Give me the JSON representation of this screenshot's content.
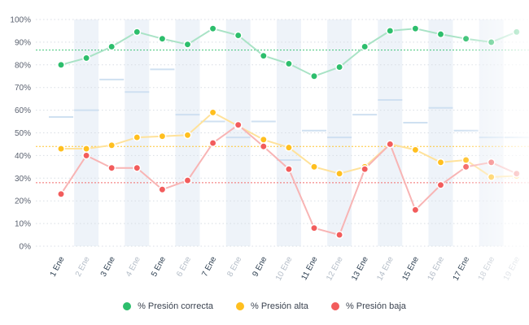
{
  "chart_data": {
    "type": "line",
    "categories": [
      "1 Ene",
      "2 Ene",
      "3 Ene",
      "4 Ene",
      "5 Ene",
      "6 Ene",
      "7 Ene",
      "8 Ene",
      "9 Ene",
      "10 Ene",
      "11 Ene",
      "12 Ene",
      "13 Ene",
      "14 Ene",
      "15 Ene",
      "16 Ene",
      "17 Ene",
      "18 Ene",
      "19 Ene"
    ],
    "category_emphasis": [
      "strong",
      "muted",
      "strong",
      "muted",
      "strong",
      "muted",
      "strong",
      "muted",
      "strong",
      "muted",
      "strong",
      "muted",
      "strong",
      "muted",
      "strong",
      "muted",
      "strong",
      "muted",
      "muted"
    ],
    "yticks": [
      "0%",
      "10%",
      "20%",
      "30%",
      "40%",
      "50%",
      "60%",
      "70%",
      "80%",
      "90%",
      "100%"
    ],
    "ylim": [
      0,
      100
    ],
    "series": [
      {
        "name": "% Presión correcta",
        "color": "#2dbe6c",
        "line_color": "#a9e3c6",
        "values": [
          80,
          83,
          88,
          94.5,
          91.5,
          89,
          96,
          93,
          84,
          80.5,
          75,
          79,
          88,
          95,
          96,
          93.5,
          91.5,
          90,
          94.5
        ]
      },
      {
        "name": "% Presión alta",
        "color": "#ffbf1f",
        "line_color": "#ffe29a",
        "values": [
          43,
          43,
          44.5,
          48,
          48.5,
          49,
          59,
          53,
          47,
          43.5,
          35,
          32,
          35,
          45,
          42.5,
          37,
          38,
          30.5,
          31
        ]
      },
      {
        "name": "% Presión baja",
        "color": "#f25c5c",
        "line_color": "#f8b4b4",
        "values": [
          23,
          40,
          34.5,
          34.5,
          25,
          29,
          45.5,
          53.5,
          44,
          34,
          8,
          5,
          34,
          45,
          16,
          27,
          35,
          37,
          32
        ]
      }
    ],
    "reference_lines": [
      {
        "name": "target-correcta",
        "value": 86.5,
        "color": "#2dbe6c"
      },
      {
        "name": "target-alta",
        "value": 44,
        "color": "#ffbf1f"
      },
      {
        "name": "target-baja",
        "value": 28,
        "color": "#f25c5c"
      }
    ],
    "markers": [
      57,
      60,
      73.5,
      68,
      78,
      58,
      55,
      48,
      55,
      38,
      51,
      48,
      58,
      64.5,
      54.5,
      61,
      51,
      48,
      48
    ]
  },
  "legend": {
    "correcta_label": "% Presión correcta",
    "alta_label": "% Presión alta",
    "baja_label": "% Presión baja"
  },
  "colors": {
    "band": "#eef3f9",
    "marker": "#cfe0f1",
    "grid": "#d8dde4"
  }
}
